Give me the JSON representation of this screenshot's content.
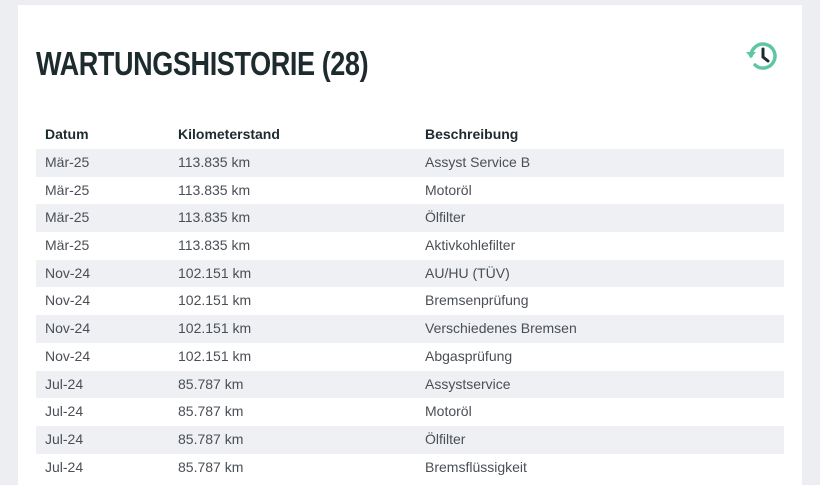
{
  "header": {
    "title": "WARTUNGSHISTORIE (28)"
  },
  "table": {
    "columns": [
      "Datum",
      "Kilometerstand",
      "Beschreibung"
    ],
    "rows": [
      [
        "Mär-25",
        "113.835 km",
        "Assyst Service B"
      ],
      [
        "Mär-25",
        "113.835 km",
        "Motoröl"
      ],
      [
        "Mär-25",
        "113.835 km",
        "Ölfilter"
      ],
      [
        "Mär-25",
        "113.835 km",
        "Aktivkohlefilter"
      ],
      [
        "Nov-24",
        "102.151 km",
        "AU/HU (TÜV)"
      ],
      [
        "Nov-24",
        "102.151 km",
        "Bremsenprüfung"
      ],
      [
        "Nov-24",
        "102.151 km",
        "Verschiedenes Bremsen"
      ],
      [
        "Nov-24",
        "102.151 km",
        "Abgasprüfung"
      ],
      [
        "Jul-24",
        "85.787 km",
        "Assystservice"
      ],
      [
        "Jul-24",
        "85.787 km",
        "Motoröl"
      ],
      [
        "Jul-24",
        "85.787 km",
        "Ölfilter"
      ],
      [
        "Jul-24",
        "85.787 km",
        "Bremsflüssigkeit"
      ]
    ]
  }
}
